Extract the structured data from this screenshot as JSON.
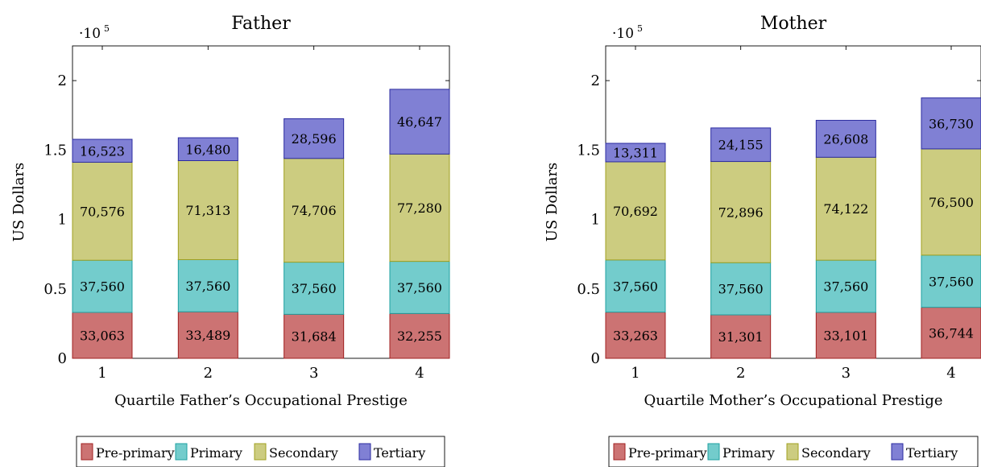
{
  "chart_data": [
    {
      "type": "bar",
      "stacked": true,
      "title": "Father",
      "xlabel": "Quartile Father’s Occupational Prestige",
      "ylabel": "US Dollars",
      "y_scale_label": "·10",
      "y_scale_exp": "5",
      "categories": [
        "1",
        "2",
        "3",
        "4"
      ],
      "ylim": [
        0,
        225000
      ],
      "yticks": [
        0,
        50000,
        100000,
        150000,
        200000
      ],
      "ytick_labels": [
        "0",
        "0.5",
        "1",
        "1.5",
        "2"
      ],
      "series": [
        {
          "name": "Pre-primary",
          "color": "#cc7373",
          "stroke": "#a02020",
          "values": [
            33063,
            33489,
            31684,
            32255
          ],
          "labels": [
            "33,063",
            "33,489",
            "31,684",
            "32,255"
          ]
        },
        {
          "name": "Primary",
          "color": "#73cccc",
          "stroke": "#1fa0a0",
          "values": [
            37560,
            37560,
            37560,
            37560
          ],
          "labels": [
            "37,560",
            "37,560",
            "37,560",
            "37,560"
          ]
        },
        {
          "name": "Secondary",
          "color": "#cccc80",
          "stroke": "#a0a020",
          "values": [
            70576,
            71313,
            74706,
            77280
          ],
          "labels": [
            "70,576",
            "71,313",
            "74,706",
            "77,280"
          ]
        },
        {
          "name": "Tertiary",
          "color": "#8080d4",
          "stroke": "#2b2ba0",
          "values": [
            16523,
            16480,
            28596,
            46647
          ],
          "labels": [
            "16,523",
            "16,480",
            "28,596",
            "46,647"
          ]
        }
      ],
      "legend": [
        "Pre-primary",
        "Primary",
        "Secondary",
        "Tertiary"
      ],
      "legend_placement": "bottom",
      "grid": false
    },
    {
      "type": "bar",
      "stacked": true,
      "title": "Mother",
      "xlabel": "Quartile Mother’s Occupational Prestige",
      "ylabel": "US Dollars",
      "y_scale_label": "·10",
      "y_scale_exp": "5",
      "categories": [
        "1",
        "2",
        "3",
        "4"
      ],
      "ylim": [
        0,
        225000
      ],
      "yticks": [
        0,
        50000,
        100000,
        150000,
        200000
      ],
      "ytick_labels": [
        "0",
        "0.5",
        "1",
        "1.5",
        "2"
      ],
      "series": [
        {
          "name": "Pre-primary",
          "color": "#cc7373",
          "stroke": "#a02020",
          "values": [
            33263,
            31301,
            33101,
            36744
          ],
          "labels": [
            "33,263",
            "31,301",
            "33,101",
            "36,744"
          ]
        },
        {
          "name": "Primary",
          "color": "#73cccc",
          "stroke": "#1fa0a0",
          "values": [
            37560,
            37560,
            37560,
            37560
          ],
          "labels": [
            "37,560",
            "37,560",
            "37,560",
            "37,560"
          ]
        },
        {
          "name": "Secondary",
          "color": "#cccc80",
          "stroke": "#a0a020",
          "values": [
            70692,
            72896,
            74122,
            76500
          ],
          "labels": [
            "70,692",
            "72,896",
            "74,122",
            "76,500"
          ]
        },
        {
          "name": "Tertiary",
          "color": "#8080d4",
          "stroke": "#2b2ba0",
          "values": [
            13311,
            24155,
            26608,
            36730
          ],
          "labels": [
            "13,311",
            "24,155",
            "26,608",
            "36,730"
          ]
        }
      ],
      "legend": [
        "Pre-primary",
        "Primary",
        "Secondary",
        "Tertiary"
      ],
      "legend_placement": "bottom",
      "grid": false
    }
  ]
}
